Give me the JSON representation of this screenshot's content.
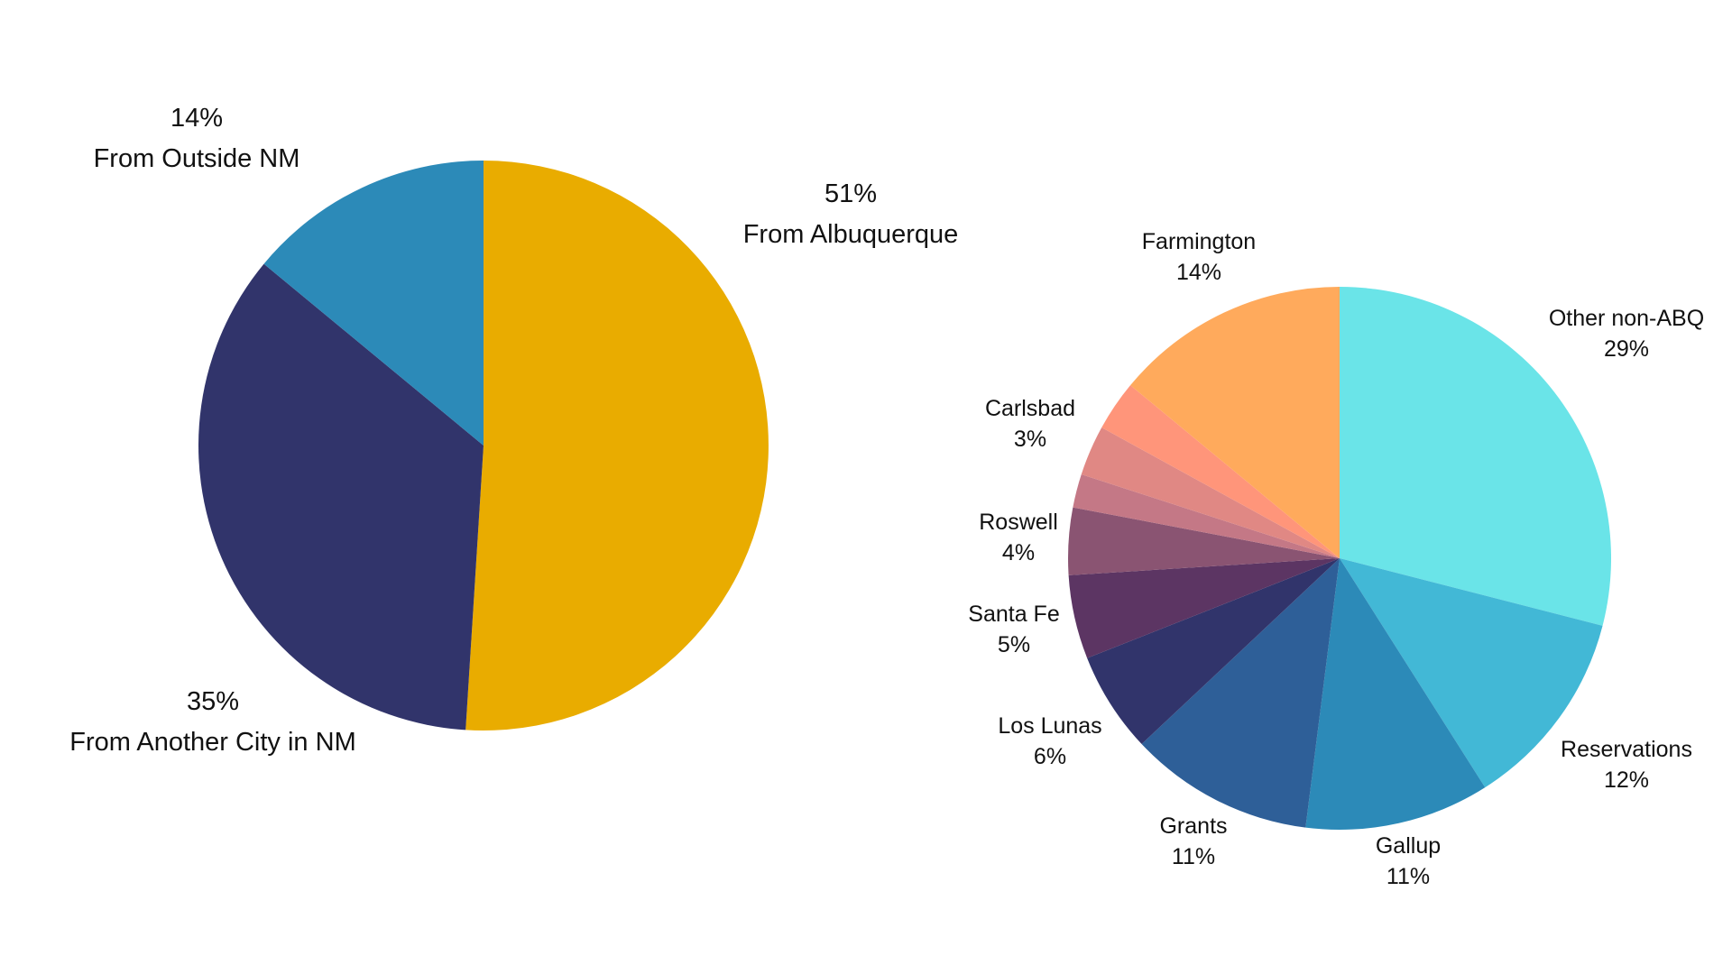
{
  "chart_data": [
    {
      "type": "pie",
      "slices": [
        {
          "label": "From Albuquerque",
          "value": 51,
          "display": "51%",
          "color": "#E9AC00"
        },
        {
          "label": "From Another City in NM",
          "value": 35,
          "display": "35%",
          "color": "#31346B"
        },
        {
          "label": "From Outside NM",
          "value": 14,
          "display": "14%",
          "color": "#2C8AB8"
        }
      ]
    },
    {
      "type": "pie",
      "slices": [
        {
          "label": "Other non-ABQ",
          "value": 29,
          "display": "29%",
          "color": "#6AE4E8"
        },
        {
          "label": "Reservations",
          "value": 12,
          "display": "12%",
          "color": "#42B8D6"
        },
        {
          "label": "Gallup",
          "value": 11,
          "display": "11%",
          "color": "#2C8AB8"
        },
        {
          "label": "Grants",
          "value": 11,
          "display": "11%",
          "color": "#2E5F98"
        },
        {
          "label": "Los Lunas",
          "value": 6,
          "display": "6%",
          "color": "#31346B"
        },
        {
          "label": "Santa Fe",
          "value": 5,
          "display": "5%",
          "color": "#5C3563"
        },
        {
          "label": "Roswell",
          "value": 4,
          "display": "4%",
          "color": "#8A5472"
        },
        {
          "label": "",
          "value": 2,
          "display": "",
          "color": "#C47886"
        },
        {
          "label": "",
          "value": 3,
          "display": "",
          "color": "#E08884"
        },
        {
          "label": "Carlsbad",
          "value": 3,
          "display": "3%",
          "color": "#FF957A"
        },
        {
          "label": "Farmington",
          "value": 14,
          "display": "14%",
          "color": "#FFAA5C"
        }
      ]
    }
  ]
}
